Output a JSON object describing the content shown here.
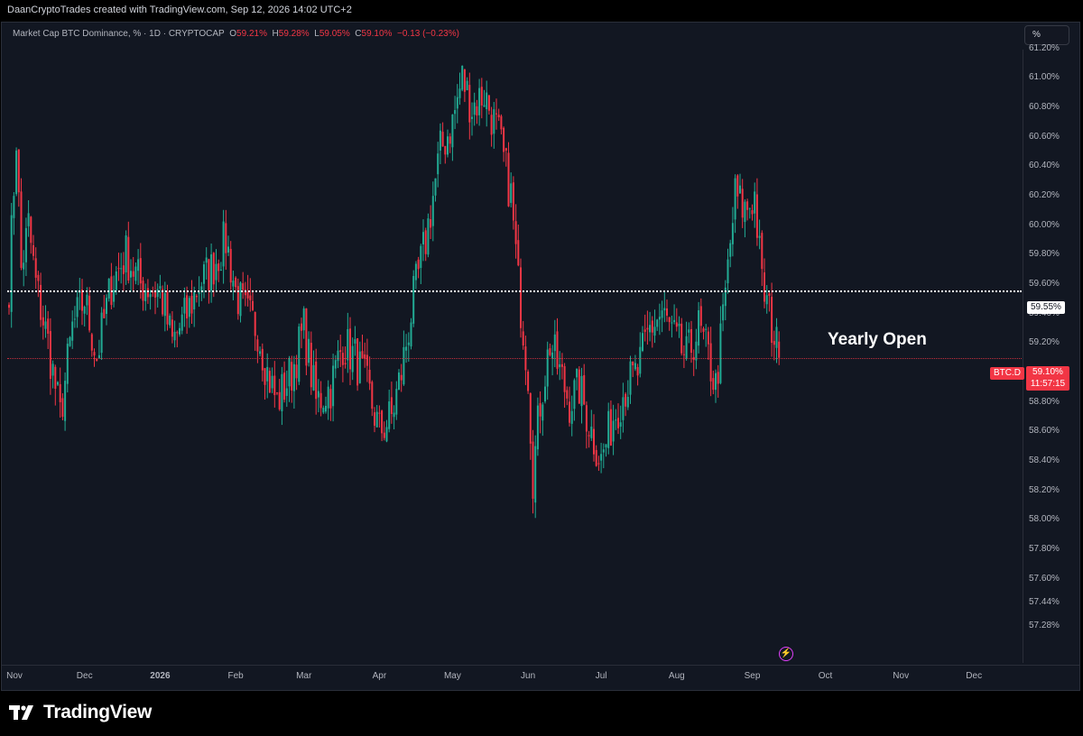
{
  "header": {
    "credit": "DaanCryptoTrades created with TradingView.com, Sep 12, 2026 14:02 UTC+2"
  },
  "symbol_bar": {
    "title": "Market Cap BTC Dominance, % · 1D · CRYPTOCAP",
    "o_label": "O",
    "o_value": "59.21%",
    "h_label": "H",
    "h_value": "59.28%",
    "l_label": "L",
    "l_value": "59.05%",
    "c_label": "C",
    "c_value": "59.10%",
    "change": "−0.13 (−0.23%)"
  },
  "scale_button": "%",
  "annotation": "Yearly Open",
  "yearly_open_label": "59.55%",
  "symbol_tag": "BTC.D",
  "price_tag": {
    "price": "59.10%",
    "countdown": "11:57:15"
  },
  "footer": {
    "logo_text": "TradingView"
  },
  "colors": {
    "up": "#22ab94",
    "down": "#f23645",
    "background": "#121722",
    "yearly_open_line": "#ffffff"
  },
  "icons": {
    "alert": "lightning-bolt-icon",
    "logo": "tradingview-logo-icon"
  },
  "chart_data": {
    "type": "candlestick",
    "y_ticks": [
      "61.20%",
      "61.00%",
      "60.80%",
      "60.60%",
      "60.40%",
      "60.20%",
      "60.00%",
      "59.80%",
      "59.60%",
      "59.40%",
      "59.20%",
      "59.00%",
      "58.80%",
      "58.60%",
      "58.40%",
      "58.20%",
      "58.00%",
      "57.80%",
      "57.60%",
      "57.44%",
      "57.28%"
    ],
    "x_ticks": [
      "Nov",
      "Dec",
      "2026",
      "Feb",
      "Mar",
      "Apr",
      "May",
      "Jun",
      "Jul",
      "Aug",
      "Sep",
      "Oct",
      "Nov",
      "Dec"
    ],
    "ylim": [
      57.2,
      61.4
    ],
    "yearly_open": 59.55,
    "last_price": 59.1,
    "anchors": [
      [
        "2025-10-31",
        59.6
      ],
      [
        "2025-11-03",
        60.6
      ],
      [
        "2025-11-05",
        59.7
      ],
      [
        "2025-11-08",
        60.0
      ],
      [
        "2025-11-11",
        59.6
      ],
      [
        "2025-11-16",
        59.2
      ],
      [
        "2025-11-21",
        58.7
      ],
      [
        "2025-11-26",
        59.3
      ],
      [
        "2025-12-01",
        59.5
      ],
      [
        "2025-12-06",
        59.1
      ],
      [
        "2025-12-12",
        59.6
      ],
      [
        "2025-12-18",
        59.8
      ],
      [
        "2025-12-24",
        59.6
      ],
      [
        "2026-01-01",
        59.55
      ],
      [
        "2026-01-06",
        59.2
      ],
      [
        "2026-01-12",
        59.4
      ],
      [
        "2026-01-17",
        59.6
      ],
      [
        "2026-01-22",
        59.7
      ],
      [
        "2026-01-28",
        59.9
      ],
      [
        "2026-02-01",
        59.55
      ],
      [
        "2026-02-05",
        59.4
      ],
      [
        "2026-02-10",
        59.3
      ],
      [
        "2026-02-14",
        59.0
      ],
      [
        "2026-02-18",
        58.8
      ],
      [
        "2026-02-24",
        59.0
      ],
      [
        "2026-03-01",
        59.3
      ],
      [
        "2026-03-06",
        58.8
      ],
      [
        "2026-03-12",
        58.9
      ],
      [
        "2026-03-17",
        59.2
      ],
      [
        "2026-03-22",
        59.1
      ],
      [
        "2026-03-27",
        58.9
      ],
      [
        "2026-04-01",
        58.6
      ],
      [
        "2026-04-06",
        58.7
      ],
      [
        "2026-04-10",
        59.0
      ],
      [
        "2026-04-15",
        59.5
      ],
      [
        "2026-04-20",
        59.9
      ],
      [
        "2026-04-26",
        60.5
      ],
      [
        "2026-05-01",
        60.7
      ],
      [
        "2026-05-05",
        61.0
      ],
      [
        "2026-05-09",
        60.8
      ],
      [
        "2026-05-14",
        60.9
      ],
      [
        "2026-05-20",
        60.6
      ],
      [
        "2026-05-25",
        60.2
      ],
      [
        "2026-05-28",
        59.6
      ],
      [
        "2026-06-01",
        59.0
      ],
      [
        "2026-06-03",
        58.3
      ],
      [
        "2026-06-06",
        58.8
      ],
      [
        "2026-06-10",
        59.2
      ],
      [
        "2026-06-14",
        59.0
      ],
      [
        "2026-06-18",
        58.8
      ],
      [
        "2026-06-22",
        58.9
      ],
      [
        "2026-06-27",
        58.6
      ],
      [
        "2026-07-01",
        58.4
      ],
      [
        "2026-07-06",
        58.7
      ],
      [
        "2026-07-11",
        58.9
      ],
      [
        "2026-07-16",
        59.0
      ],
      [
        "2026-07-21",
        59.3
      ],
      [
        "2026-07-26",
        59.4
      ],
      [
        "2026-08-01",
        59.2
      ],
      [
        "2026-08-05",
        59.1
      ],
      [
        "2026-08-10",
        59.3
      ],
      [
        "2026-08-14",
        59.1
      ],
      [
        "2026-08-17",
        58.9
      ],
      [
        "2026-08-19",
        59.2
      ],
      [
        "2026-08-22",
        59.7
      ],
      [
        "2026-08-25",
        60.2
      ],
      [
        "2026-08-29",
        60.1
      ],
      [
        "2026-09-02",
        60.2
      ],
      [
        "2026-09-05",
        59.6
      ],
      [
        "2026-09-08",
        59.4
      ],
      [
        "2026-09-12",
        59.1
      ]
    ]
  }
}
